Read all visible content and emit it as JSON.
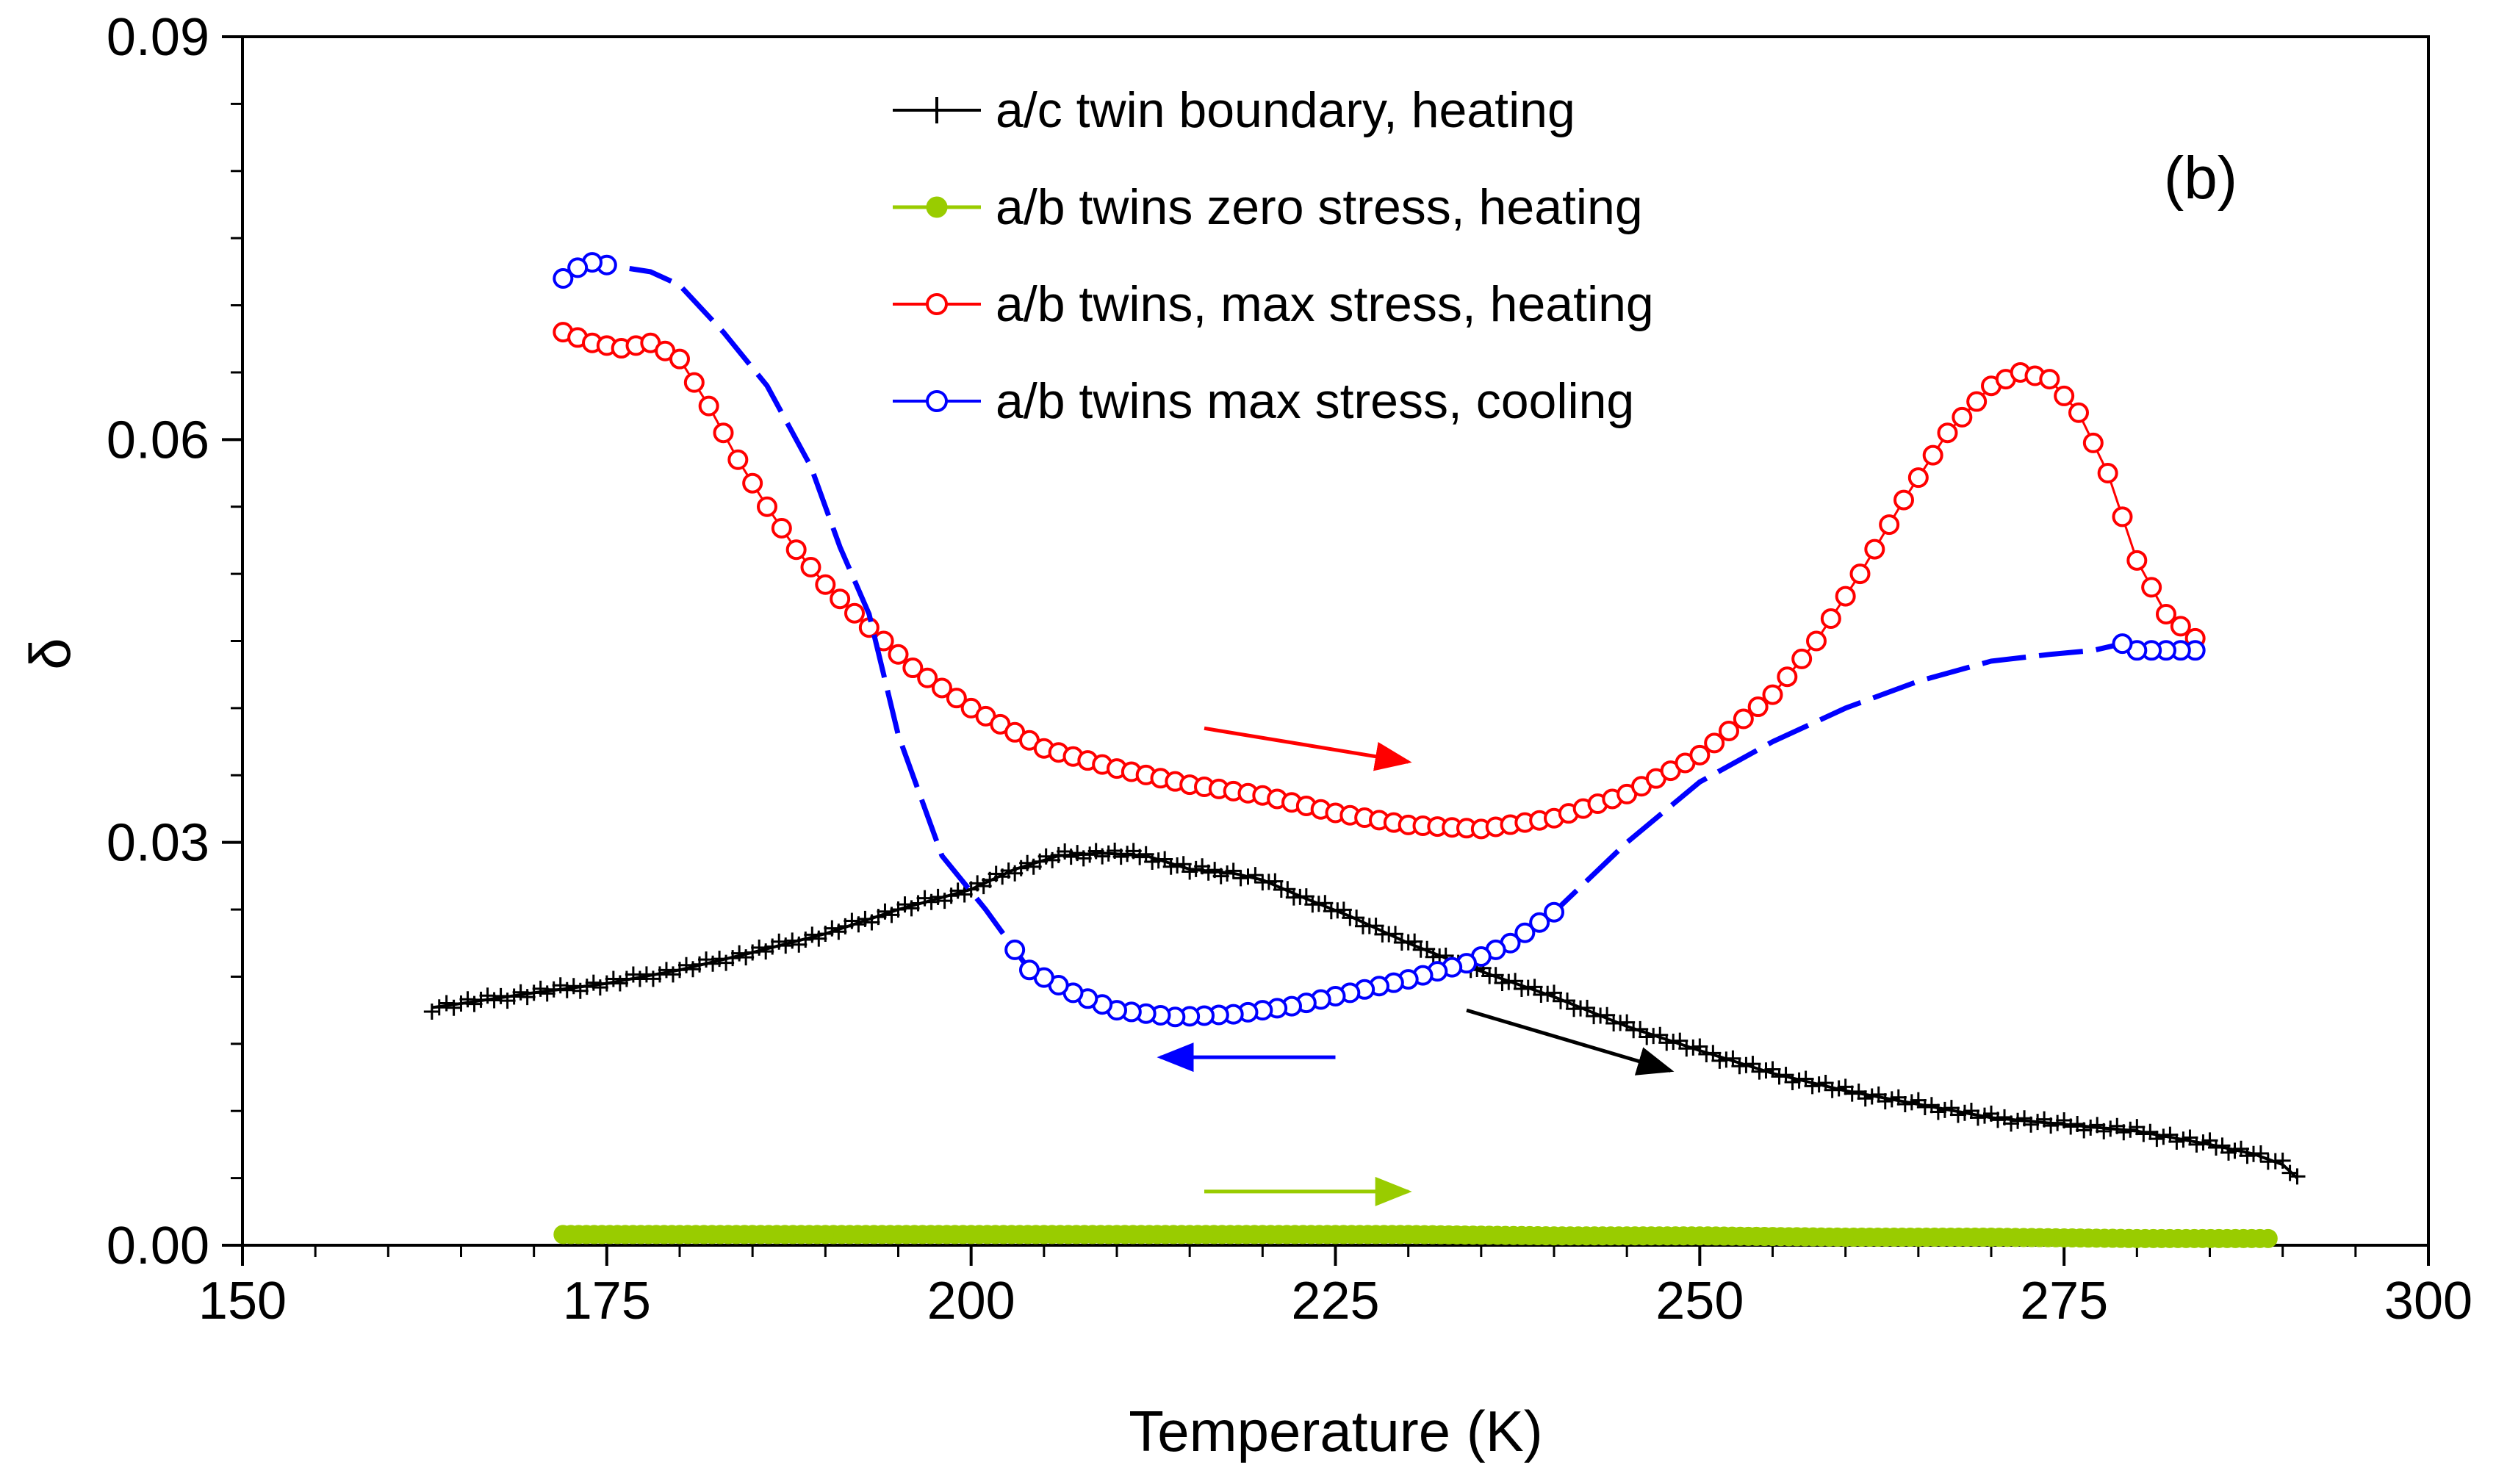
{
  "chart_data": {
    "type": "scatter",
    "panel_label": "(b)",
    "xlabel": "Temperature (K)",
    "ylabel": "δ",
    "xlim": [
      150,
      300
    ],
    "ylim": [
      0,
      0.09
    ],
    "x_ticks": [
      150,
      175,
      200,
      225,
      250,
      275,
      300
    ],
    "x_tick_labels": [
      "150",
      "175",
      "200",
      "225",
      "250",
      "275",
      "300"
    ],
    "y_ticks": [
      0,
      0.03,
      0.06,
      0.09
    ],
    "y_tick_labels": [
      "0.00",
      "0.03",
      "0.06",
      "0.09"
    ],
    "grid": false,
    "legend_position": "top-center",
    "series": [
      {
        "name": "a/c twin boundary, heating",
        "color": "#000000",
        "marker": "plus",
        "x": [
          163,
          165,
          170,
          175,
          180,
          185,
          190,
          195,
          200,
          203,
          206,
          209,
          212,
          215,
          218,
          220,
          223,
          226,
          230,
          233,
          236,
          240,
          245,
          250,
          255,
          260,
          265,
          270,
          275,
          280,
          285,
          288,
          290,
          291
        ],
        "y": [
          0.0177,
          0.018,
          0.0188,
          0.0195,
          0.0205,
          0.0218,
          0.0232,
          0.025,
          0.0265,
          0.028,
          0.029,
          0.0292,
          0.029,
          0.028,
          0.0277,
          0.0272,
          0.0258,
          0.0245,
          0.0225,
          0.0212,
          0.02,
          0.0185,
          0.0163,
          0.0145,
          0.0128,
          0.0115,
          0.0105,
          0.0095,
          0.009,
          0.0085,
          0.0075,
          0.0068,
          0.006,
          0.005
        ]
      },
      {
        "name": "a/b twins zero stress, heating",
        "color": "#99cc00",
        "marker": "filled-circle",
        "x": [
          172,
          180,
          190,
          200,
          210,
          220,
          230,
          240,
          250,
          260,
          270,
          280,
          289
        ],
        "y": [
          0.0008,
          0.0008,
          0.0008,
          0.0008,
          0.0008,
          0.0008,
          0.0008,
          0.0007,
          0.0007,
          0.0006,
          0.0006,
          0.0005,
          0.0005
        ]
      },
      {
        "name": "a/b twins, max stress, heating",
        "color": "#ff0000",
        "marker": "open-circle",
        "x": [
          172,
          174,
          176,
          178,
          180,
          182,
          184,
          186,
          188,
          190,
          193,
          196,
          200,
          205,
          210,
          215,
          220,
          225,
          230,
          235,
          240,
          245,
          250,
          255,
          258,
          261,
          264,
          267,
          270,
          272,
          274,
          276,
          278,
          280,
          282,
          284
        ],
        "y": [
          0.068,
          0.0672,
          0.0668,
          0.0672,
          0.066,
          0.0625,
          0.0585,
          0.055,
          0.0518,
          0.0492,
          0.046,
          0.043,
          0.04,
          0.037,
          0.0355,
          0.0343,
          0.0335,
          0.0322,
          0.0313,
          0.031,
          0.0318,
          0.0336,
          0.0365,
          0.041,
          0.045,
          0.05,
          0.0555,
          0.0605,
          0.064,
          0.065,
          0.0645,
          0.062,
          0.0575,
          0.051,
          0.047,
          0.0452
        ]
      },
      {
        "name": "a/b twins max stress, cooling",
        "color": "#0000ff",
        "marker": "open-circle",
        "x": [
          284,
          280,
          279,
          277,
          274,
          270,
          265,
          260,
          255,
          250,
          245,
          240,
          237,
          234,
          230,
          226,
          222,
          218,
          214,
          210,
          207,
          204,
          203,
          201,
          198,
          195,
          193,
          191,
          189,
          186,
          183,
          180,
          178,
          175,
          174,
          173,
          172
        ],
        "y": [
          0.0443,
          0.0443,
          0.0448,
          0.0443,
          0.044,
          0.0435,
          0.042,
          0.04,
          0.0375,
          0.0345,
          0.03,
          0.0248,
          0.0225,
          0.021,
          0.0198,
          0.0188,
          0.0178,
          0.0172,
          0.017,
          0.0175,
          0.0188,
          0.0205,
          0.022,
          0.025,
          0.029,
          0.038,
          0.047,
          0.052,
          0.058,
          0.064,
          0.068,
          0.0715,
          0.0725,
          0.073,
          0.0732,
          0.0728,
          0.072
        ]
      }
    ],
    "annotations": [
      {
        "type": "arrow",
        "color": "#ff0000",
        "from": [
          216,
          0.0385
        ],
        "to": [
          230,
          0.036
        ]
      },
      {
        "type": "arrow",
        "color": "#0000ff",
        "from": [
          225,
          0.014
        ],
        "to": [
          213,
          0.014
        ]
      },
      {
        "type": "arrow",
        "color": "#000000",
        "from": [
          234,
          0.0175
        ],
        "to": [
          248,
          0.013
        ]
      },
      {
        "type": "arrow",
        "color": "#99cc00",
        "from": [
          216,
          0.004
        ],
        "to": [
          230,
          0.004
        ]
      }
    ]
  }
}
